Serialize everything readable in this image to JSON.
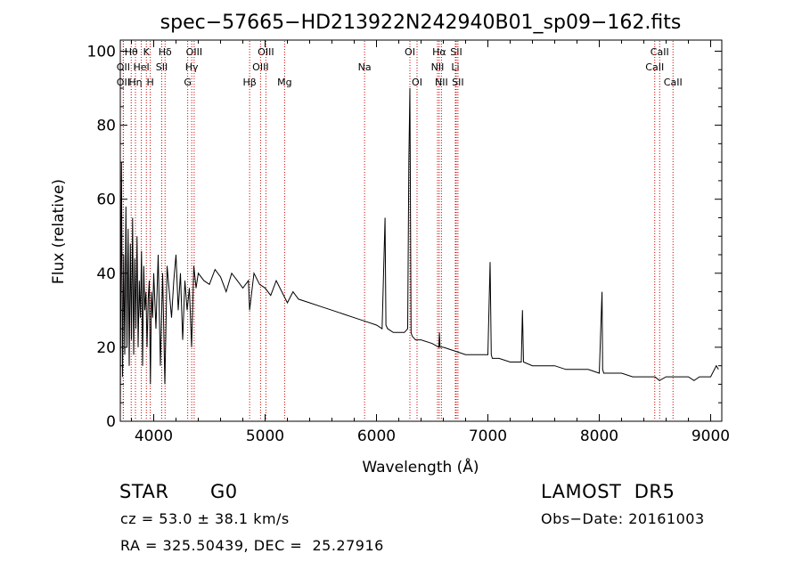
{
  "chart_data": {
    "type": "line",
    "title": "spec−57665−HD213922N242940B01_sp09−162.fits",
    "xlabel": "Wavelength (Å)",
    "ylabel": "Flux (relative)",
    "xlim": [
      3700,
      9100
    ],
    "ylim": [
      0,
      103
    ],
    "xticks": [
      4000,
      5000,
      6000,
      7000,
      8000,
      9000
    ],
    "yticks": [
      0,
      20,
      40,
      60,
      80,
      100
    ],
    "colors": {
      "spectrum": "#000000",
      "lines": "#cc0000"
    },
    "series": [
      {
        "x": [
          3700,
          3710,
          3720,
          3730,
          3740,
          3750,
          3760,
          3770,
          3780,
          3790,
          3800,
          3810,
          3820,
          3830,
          3840,
          3850,
          3860,
          3870,
          3880,
          3890,
          3900,
          3910,
          3920,
          3930,
          3940,
          3950,
          3960,
          3970,
          3980,
          3990,
          4000,
          4020,
          4040,
          4060,
          4080,
          4100,
          4120,
          4140,
          4160,
          4180,
          4200,
          4220,
          4240,
          4260,
          4280,
          4300,
          4320,
          4340,
          4360,
          4380,
          4400,
          4450,
          4500,
          4550,
          4600,
          4650,
          4700,
          4750,
          4800,
          4850,
          4861,
          4900,
          4950,
          5000,
          5050,
          5100,
          5150,
          5200,
          5250,
          5300,
          5400,
          5500,
          5600,
          5700,
          5800,
          5900,
          6000,
          6050,
          6077,
          6085,
          6100,
          6150,
          6200,
          6250,
          6280,
          6290,
          6300,
          6310,
          6320,
          6350,
          6400,
          6500,
          6560,
          6565,
          6570,
          6600,
          6700,
          6800,
          6900,
          7000,
          7020,
          7030,
          7040,
          7100,
          7200,
          7300,
          7310,
          7320,
          7400,
          7500,
          7600,
          7700,
          7800,
          7900,
          8000,
          8025,
          8030,
          8040,
          8100,
          8200,
          8300,
          8400,
          8500,
          8540,
          8600,
          8662,
          8700,
          8800,
          8850,
          8900,
          9000,
          9050,
          9070
        ],
        "y": [
          2,
          70,
          12,
          45,
          18,
          58,
          20,
          52,
          15,
          48,
          22,
          55,
          18,
          44,
          25,
          50,
          20,
          38,
          28,
          46,
          15,
          42,
          30,
          35,
          20,
          33,
          38,
          10,
          35,
          28,
          40,
          25,
          45,
          15,
          40,
          10,
          42,
          35,
          28,
          38,
          45,
          30,
          40,
          22,
          38,
          30,
          36,
          20,
          42,
          36,
          40,
          38,
          37,
          41,
          39,
          35,
          40,
          38,
          36,
          38,
          30,
          40,
          37,
          36,
          34,
          38,
          35,
          32,
          35,
          33,
          32,
          31,
          30,
          29,
          28,
          27,
          26,
          25,
          55,
          26,
          25,
          24,
          24,
          24,
          25,
          70,
          90,
          24,
          23,
          22,
          22,
          21,
          20,
          24,
          20,
          20,
          19,
          18,
          18,
          18,
          43,
          18,
          17,
          17,
          16,
          16,
          30,
          16,
          15,
          15,
          15,
          14,
          14,
          14,
          13,
          35,
          14,
          13,
          13,
          13,
          12,
          12,
          12,
          11,
          12,
          12,
          12,
          12,
          11,
          12,
          12,
          15,
          14
        ]
      }
    ],
    "line_markers": [
      {
        "label": "Hθ",
        "x": 3798,
        "row": 1
      },
      {
        "label": "OII",
        "x": 3727,
        "row": 2
      },
      {
        "label": "OII",
        "x": 3727,
        "row": 3
      },
      {
        "label": "Hη",
        "x": 3836,
        "row": 3
      },
      {
        "label": "HeI",
        "x": 3889,
        "row": 2
      },
      {
        "label": "K",
        "x": 3934,
        "row": 1
      },
      {
        "label": "H",
        "x": 3969,
        "row": 3
      },
      {
        "label": "SII",
        "x": 4072,
        "row": 2
      },
      {
        "label": "Hδ",
        "x": 4102,
        "row": 1
      },
      {
        "label": "OIII",
        "x": 4363,
        "row": 1
      },
      {
        "label": "Hγ",
        "x": 4341,
        "row": 2
      },
      {
        "label": "G",
        "x": 4305,
        "row": 3
      },
      {
        "label": "Hβ",
        "x": 4861,
        "row": 3
      },
      {
        "label": "OIII",
        "x": 5007,
        "row": 1
      },
      {
        "label": "OIII",
        "x": 4959,
        "row": 2
      },
      {
        "label": "Mg",
        "x": 5175,
        "row": 3
      },
      {
        "label": "Na",
        "x": 5893,
        "row": 2
      },
      {
        "label": "OI",
        "x": 6300,
        "row": 1
      },
      {
        "label": "OI",
        "x": 6364,
        "row": 3
      },
      {
        "label": "Hα",
        "x": 6563,
        "row": 1
      },
      {
        "label": "NII",
        "x": 6548,
        "row": 2
      },
      {
        "label": "NII",
        "x": 6583,
        "row": 3
      },
      {
        "label": "SII",
        "x": 6716,
        "row": 1
      },
      {
        "label": "Li",
        "x": 6708,
        "row": 2
      },
      {
        "label": "SII",
        "x": 6731,
        "row": 3
      },
      {
        "label": "CaII",
        "x": 8542,
        "row": 1
      },
      {
        "label": "CaII",
        "x": 8498,
        "row": 2
      },
      {
        "label": "CaII",
        "x": 8662,
        "row": 3
      }
    ]
  },
  "info": {
    "object_class": "STAR",
    "subclass": "G0",
    "survey": "LAMOST  DR5",
    "cz": "cz = 53.0 ± 38.1 km/s",
    "obs_date": "Obs−Date: 20161003",
    "coords": "RA = 325.50439, DEC =  25.27916"
  }
}
